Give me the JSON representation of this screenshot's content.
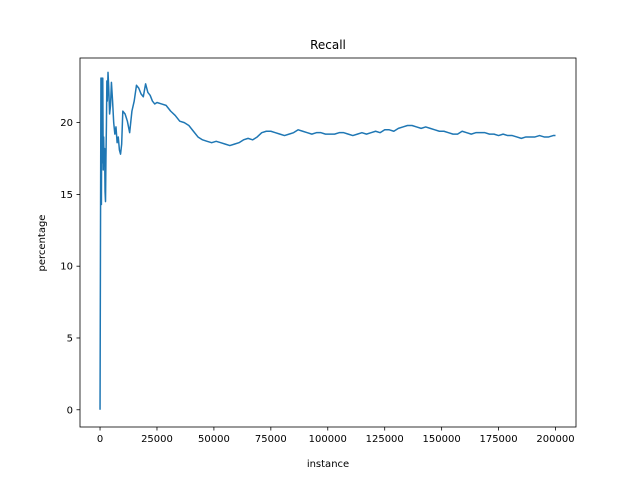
{
  "chart_data": {
    "type": "line",
    "title": "Recall",
    "xlabel": "instance",
    "ylabel": "percentage",
    "xlim": [
      -8800,
      209000
    ],
    "ylim": [
      -1.2,
      24.5
    ],
    "xticks": [
      0,
      25000,
      50000,
      75000,
      100000,
      125000,
      150000,
      175000,
      200000
    ],
    "xtick_labels": [
      "0",
      "25000",
      "50000",
      "75000",
      "100000",
      "125000",
      "150000",
      "175000",
      "200000"
    ],
    "yticks": [
      0,
      5,
      10,
      15,
      20
    ],
    "ytick_labels": [
      "0",
      "5",
      "10",
      "15",
      "20"
    ],
    "grid": false,
    "legend": "none",
    "line_color": "#1f77b4",
    "series": [
      {
        "x": [
          0,
          200,
          400,
          600,
          800,
          1000,
          1200,
          1400,
          1600,
          1800,
          2000,
          2200,
          2400,
          2600,
          2800,
          3000,
          3200,
          3500,
          3800,
          4200,
          4600,
          5000,
          5500,
          6000,
          6500,
          7000,
          7500,
          8000,
          8500,
          9000,
          9500,
          10000,
          11000,
          12000,
          13000,
          14000,
          15000,
          16000,
          17000,
          18000,
          19000,
          20000,
          21000,
          22000,
          23000,
          24000,
          25000,
          27000,
          29000,
          31000,
          33000,
          35000,
          37000,
          39000,
          41000,
          43000,
          45000,
          47000,
          49000,
          51000,
          53000,
          55000,
          57000,
          59000,
          61000,
          63000,
          65000,
          67000,
          69000,
          71000,
          73000,
          75000,
          77000,
          79000,
          81000,
          83000,
          85000,
          87000,
          89000,
          91000,
          93000,
          95000,
          97000,
          99000,
          101000,
          103000,
          105000,
          107000,
          109000,
          111000,
          113000,
          115000,
          117000,
          119000,
          121000,
          123000,
          125000,
          127000,
          129000,
          131000,
          133000,
          135000,
          137000,
          139000,
          141000,
          143000,
          145000,
          147000,
          149000,
          151000,
          153000,
          155000,
          157000,
          159000,
          161000,
          163000,
          165000,
          167000,
          169000,
          171000,
          173000,
          175000,
          177000,
          179000,
          181000,
          183000,
          185000,
          187000,
          189000,
          191000,
          193000,
          195000,
          197000,
          199000,
          200000
        ],
        "y": [
          0,
          12.5,
          23.1,
          14.3,
          23.1,
          17.2,
          23.1,
          16.7,
          19.0,
          17.0,
          18.2,
          15.2,
          14.5,
          17.6,
          19.8,
          22.9,
          21.5,
          23.5,
          22.5,
          20.6,
          21.2,
          22.8,
          21.5,
          20.0,
          19.2,
          19.7,
          18.6,
          19.0,
          18.1,
          17.8,
          18.5,
          20.8,
          20.6,
          20.1,
          19.3,
          20.8,
          21.5,
          22.6,
          22.4,
          22.0,
          21.8,
          22.7,
          22.1,
          21.9,
          21.5,
          21.3,
          21.4,
          21.3,
          21.2,
          20.8,
          20.5,
          20.1,
          20.0,
          19.8,
          19.4,
          19.0,
          18.8,
          18.7,
          18.6,
          18.7,
          18.6,
          18.5,
          18.4,
          18.5,
          18.6,
          18.8,
          18.9,
          18.8,
          19.0,
          19.3,
          19.4,
          19.4,
          19.3,
          19.2,
          19.1,
          19.2,
          19.3,
          19.5,
          19.4,
          19.3,
          19.2,
          19.3,
          19.3,
          19.2,
          19.2,
          19.2,
          19.3,
          19.3,
          19.2,
          19.1,
          19.2,
          19.3,
          19.2,
          19.3,
          19.4,
          19.3,
          19.5,
          19.5,
          19.4,
          19.6,
          19.7,
          19.8,
          19.8,
          19.7,
          19.6,
          19.7,
          19.6,
          19.5,
          19.4,
          19.4,
          19.3,
          19.2,
          19.2,
          19.4,
          19.3,
          19.2,
          19.3,
          19.3,
          19.3,
          19.2,
          19.2,
          19.1,
          19.2,
          19.1,
          19.1,
          19.0,
          18.9,
          19.0,
          19.0,
          19.0,
          19.1,
          19.0,
          19.0,
          19.1,
          19.1
        ]
      }
    ]
  }
}
